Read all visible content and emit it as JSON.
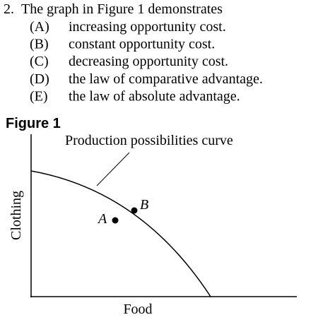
{
  "question": {
    "number": "2.",
    "text": "The graph in Figure 1 demonstrates",
    "options": [
      {
        "letter": "(A)",
        "text": "increasing opportunity cost."
      },
      {
        "letter": "(B)",
        "text": "constant opportunity cost."
      },
      {
        "letter": "(C)",
        "text": "decreasing opportunity cost."
      },
      {
        "letter": "(D)",
        "text": "the law of comparative advantage."
      },
      {
        "letter": "(E)",
        "text": "the law of absolute advantage."
      }
    ]
  },
  "figure": {
    "title": "Figure 1",
    "curve_label": "Production possibilities curve",
    "x_label": "Food",
    "y_label": "Clothing",
    "points": [
      {
        "label": "A"
      },
      {
        "label": "B"
      }
    ]
  }
}
